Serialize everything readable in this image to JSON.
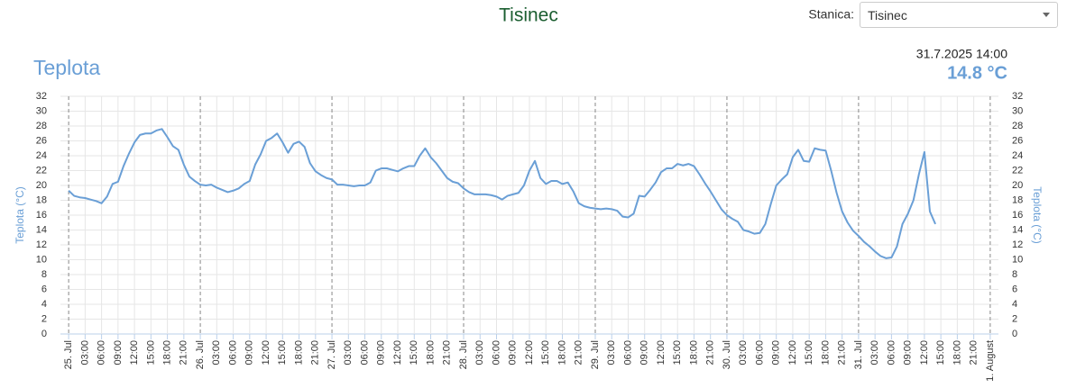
{
  "header": {
    "title": "Tisinec",
    "station_label": "Stanica:",
    "station": "Tisinec"
  },
  "chart_data": {
    "type": "line",
    "title": "Teplota",
    "current_time": "31.7.2025 14:00",
    "current_value": "14.8 °C",
    "y_label": "Teplota (°C)",
    "y2_label": "Teplota (°C)",
    "x": [
      0,
      1,
      2,
      3,
      4,
      5,
      6,
      7,
      8,
      9,
      10,
      11,
      12,
      13,
      14,
      15,
      16,
      17,
      18,
      19,
      20,
      21,
      22,
      23,
      24,
      25,
      26,
      27,
      28,
      29,
      30,
      31,
      32,
      33,
      34,
      35,
      36,
      37,
      38,
      39,
      40,
      41,
      42,
      43,
      44,
      45,
      46,
      47,
      48,
      49,
      50,
      51,
      52,
      53,
      54,
      55,
      56,
      57,
      58,
      59,
      60,
      61,
      62,
      63,
      64,
      65,
      66,
      67,
      68,
      69,
      70,
      71,
      72,
      73,
      74,
      75,
      76,
      77,
      78,
      79,
      80,
      81,
      82,
      83,
      84,
      85,
      86,
      87,
      88,
      89,
      90,
      91,
      92,
      93,
      94,
      95,
      96,
      97,
      98,
      99,
      100,
      101,
      102,
      103,
      104,
      105,
      106,
      107,
      108,
      109,
      110,
      111,
      112,
      113,
      114,
      115,
      116,
      117,
      118,
      119,
      120,
      121,
      122,
      123,
      124,
      125,
      126,
      127,
      128,
      129,
      130,
      131,
      132,
      133,
      134,
      135,
      136,
      137,
      138,
      139,
      140,
      141,
      142,
      143,
      144,
      145,
      146,
      147,
      148,
      149,
      150,
      151,
      152,
      153,
      154,
      155,
      156,
      157,
      158
    ],
    "series": [
      {
        "name": "Teplota",
        "color": "#6a9fd6",
        "values": [
          19.3,
          18.6,
          18.4,
          18.3,
          18.1,
          17.9,
          17.6,
          18.5,
          20.2,
          20.5,
          22.6,
          24.3,
          25.8,
          26.8,
          27.0,
          27.0,
          27.4,
          27.6,
          26.5,
          25.3,
          24.8,
          22.8,
          21.2,
          20.6,
          20.1,
          20.0,
          20.1,
          19.7,
          19.4,
          19.1,
          19.3,
          19.6,
          20.2,
          20.6,
          22.8,
          24.2,
          26.0,
          26.4,
          27.0,
          25.8,
          24.4,
          25.6,
          25.9,
          25.2,
          23.0,
          21.9,
          21.4,
          21.0,
          20.8,
          20.1,
          20.1,
          20.0,
          19.9,
          20.0,
          20.0,
          20.4,
          22.0,
          22.3,
          22.3,
          22.1,
          21.9,
          22.3,
          22.6,
          22.6,
          24.0,
          25.0,
          23.8,
          23.0,
          22.0,
          21.0,
          20.5,
          20.3,
          19.6,
          19.1,
          18.8,
          18.8,
          18.8,
          18.7,
          18.5,
          18.1,
          18.6,
          18.8,
          19.0,
          20.0,
          22.0,
          23.3,
          21.0,
          20.2,
          20.6,
          20.6,
          20.2,
          20.4,
          19.2,
          17.6,
          17.2,
          17.0,
          16.9,
          16.8,
          16.9,
          16.8,
          16.6,
          15.8,
          15.7,
          16.2,
          18.6,
          18.5,
          19.4,
          20.4,
          21.8,
          22.3,
          22.3,
          22.9,
          22.7,
          22.9,
          22.6,
          21.5,
          20.3,
          19.2,
          18.0,
          16.8,
          16.0,
          15.5,
          15.1,
          14.0,
          13.8,
          13.5,
          13.6,
          14.8,
          17.5,
          20.0,
          20.8,
          21.5,
          23.8,
          24.8,
          23.3,
          23.2,
          25.0,
          24.8,
          24.7,
          22.0,
          19.0,
          16.5,
          15.0,
          13.9,
          13.2,
          12.4,
          11.8,
          11.1,
          10.5,
          10.2,
          10.3,
          11.8,
          14.8,
          16.2,
          18.0,
          21.5,
          24.5,
          16.5,
          14.8
        ]
      }
    ],
    "xlim": [
      -1.5,
      169.5
    ],
    "xticks": [
      {
        "value": 0,
        "label": "25. Jul"
      },
      {
        "value": 3,
        "label": "03:00"
      },
      {
        "value": 6,
        "label": "06:00"
      },
      {
        "value": 9,
        "label": "09:00"
      },
      {
        "value": 12,
        "label": "12:00"
      },
      {
        "value": 15,
        "label": "15:00"
      },
      {
        "value": 18,
        "label": "18:00"
      },
      {
        "value": 21,
        "label": "21:00"
      },
      {
        "value": 24,
        "label": "26. Jul"
      },
      {
        "value": 27,
        "label": "03:00"
      },
      {
        "value": 30,
        "label": "06:00"
      },
      {
        "value": 33,
        "label": "09:00"
      },
      {
        "value": 36,
        "label": "12:00"
      },
      {
        "value": 39,
        "label": "15:00"
      },
      {
        "value": 42,
        "label": "18:00"
      },
      {
        "value": 45,
        "label": "21:00"
      },
      {
        "value": 48,
        "label": "27. Jul"
      },
      {
        "value": 51,
        "label": "03:00"
      },
      {
        "value": 54,
        "label": "06:00"
      },
      {
        "value": 57,
        "label": "09:00"
      },
      {
        "value": 60,
        "label": "12:00"
      },
      {
        "value": 63,
        "label": "15:00"
      },
      {
        "value": 66,
        "label": "18:00"
      },
      {
        "value": 69,
        "label": "21:00"
      },
      {
        "value": 72,
        "label": "28. Jul"
      },
      {
        "value": 75,
        "label": "03:00"
      },
      {
        "value": 78,
        "label": "06:00"
      },
      {
        "value": 81,
        "label": "09:00"
      },
      {
        "value": 84,
        "label": "12:00"
      },
      {
        "value": 87,
        "label": "15:00"
      },
      {
        "value": 90,
        "label": "18:00"
      },
      {
        "value": 93,
        "label": "21:00"
      },
      {
        "value": 96,
        "label": "29. Jul"
      },
      {
        "value": 99,
        "label": "03:00"
      },
      {
        "value": 102,
        "label": "06:00"
      },
      {
        "value": 105,
        "label": "09:00"
      },
      {
        "value": 108,
        "label": "12:00"
      },
      {
        "value": 111,
        "label": "15:00"
      },
      {
        "value": 114,
        "label": "18:00"
      },
      {
        "value": 117,
        "label": "21:00"
      },
      {
        "value": 120,
        "label": "30. Jul"
      },
      {
        "value": 123,
        "label": "03:00"
      },
      {
        "value": 126,
        "label": "06:00"
      },
      {
        "value": 129,
        "label": "09:00"
      },
      {
        "value": 132,
        "label": "12:00"
      },
      {
        "value": 135,
        "label": "15:00"
      },
      {
        "value": 138,
        "label": "18:00"
      },
      {
        "value": 141,
        "label": "21:00"
      },
      {
        "value": 144,
        "label": "31. Jul"
      },
      {
        "value": 147,
        "label": "03:00"
      },
      {
        "value": 150,
        "label": "06:00"
      },
      {
        "value": 153,
        "label": "09:00"
      },
      {
        "value": 156,
        "label": "12:00"
      },
      {
        "value": 159,
        "label": "15:00"
      },
      {
        "value": 162,
        "label": "18:00"
      },
      {
        "value": 165,
        "label": "21:00"
      },
      {
        "value": 168,
        "label": "1. August"
      }
    ],
    "ylim": [
      0,
      32
    ],
    "yticks": [
      0,
      2,
      4,
      6,
      8,
      10,
      12,
      14,
      16,
      18,
      20,
      22,
      24,
      26,
      28,
      30,
      32
    ],
    "y2lim": [
      0,
      32
    ],
    "y2ticks": [
      0,
      2,
      4,
      6,
      8,
      10,
      12,
      14,
      16,
      18,
      20,
      22,
      24,
      26,
      28,
      30,
      32
    ],
    "grid": true
  }
}
